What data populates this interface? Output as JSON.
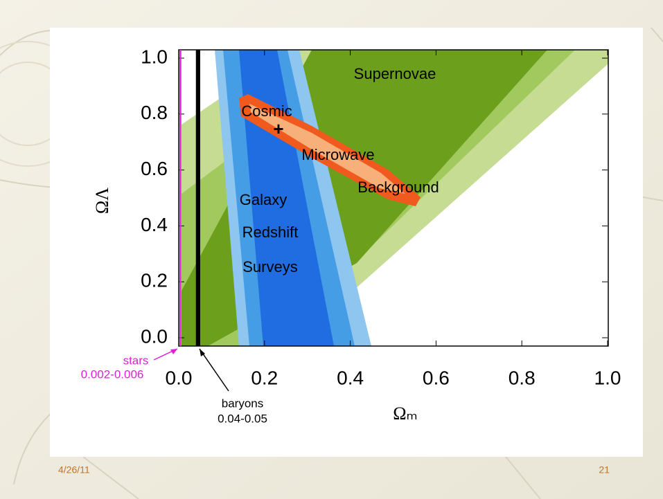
{
  "chart_data": {
    "type": "region",
    "xlabel": "Ωₘ",
    "ylabel": "ΩΛ",
    "xlim": [
      0,
      1
    ],
    "ylim": [
      0,
      1
    ],
    "xticks": [
      {
        "value": 0,
        "label": "0.0"
      },
      {
        "value": 0.2,
        "label": "0.2"
      },
      {
        "value": 0.4,
        "label": "0.4"
      },
      {
        "value": 0.6,
        "label": "0.6"
      },
      {
        "value": 0.8,
        "label": "0.8"
      },
      {
        "value": 1,
        "label": "1.0"
      }
    ],
    "yticks": [
      {
        "value": 0,
        "label": "0.0"
      },
      {
        "value": 0.2,
        "label": "0.2"
      },
      {
        "value": 0.4,
        "label": "0.4"
      },
      {
        "value": 0.6,
        "label": "0.6"
      },
      {
        "value": 0.8,
        "label": "0.8"
      },
      {
        "value": 1,
        "label": "1.0"
      }
    ],
    "annotations": [
      "Supernovae",
      "Cosmic",
      "Microwave",
      "Background",
      "Galaxy",
      "Redshift",
      "Surveys"
    ],
    "bands": [
      {
        "name": "stars",
        "range": [
          0.002,
          0.006
        ],
        "range_label": "0.002-0.006",
        "color": "#e020d8"
      },
      {
        "name": "baryons",
        "range": [
          0.04,
          0.05
        ],
        "range_label": "0.04-0.05",
        "color": "#000000"
      }
    ]
  },
  "footer": {
    "date": "4/26/11",
    "page": "21"
  }
}
